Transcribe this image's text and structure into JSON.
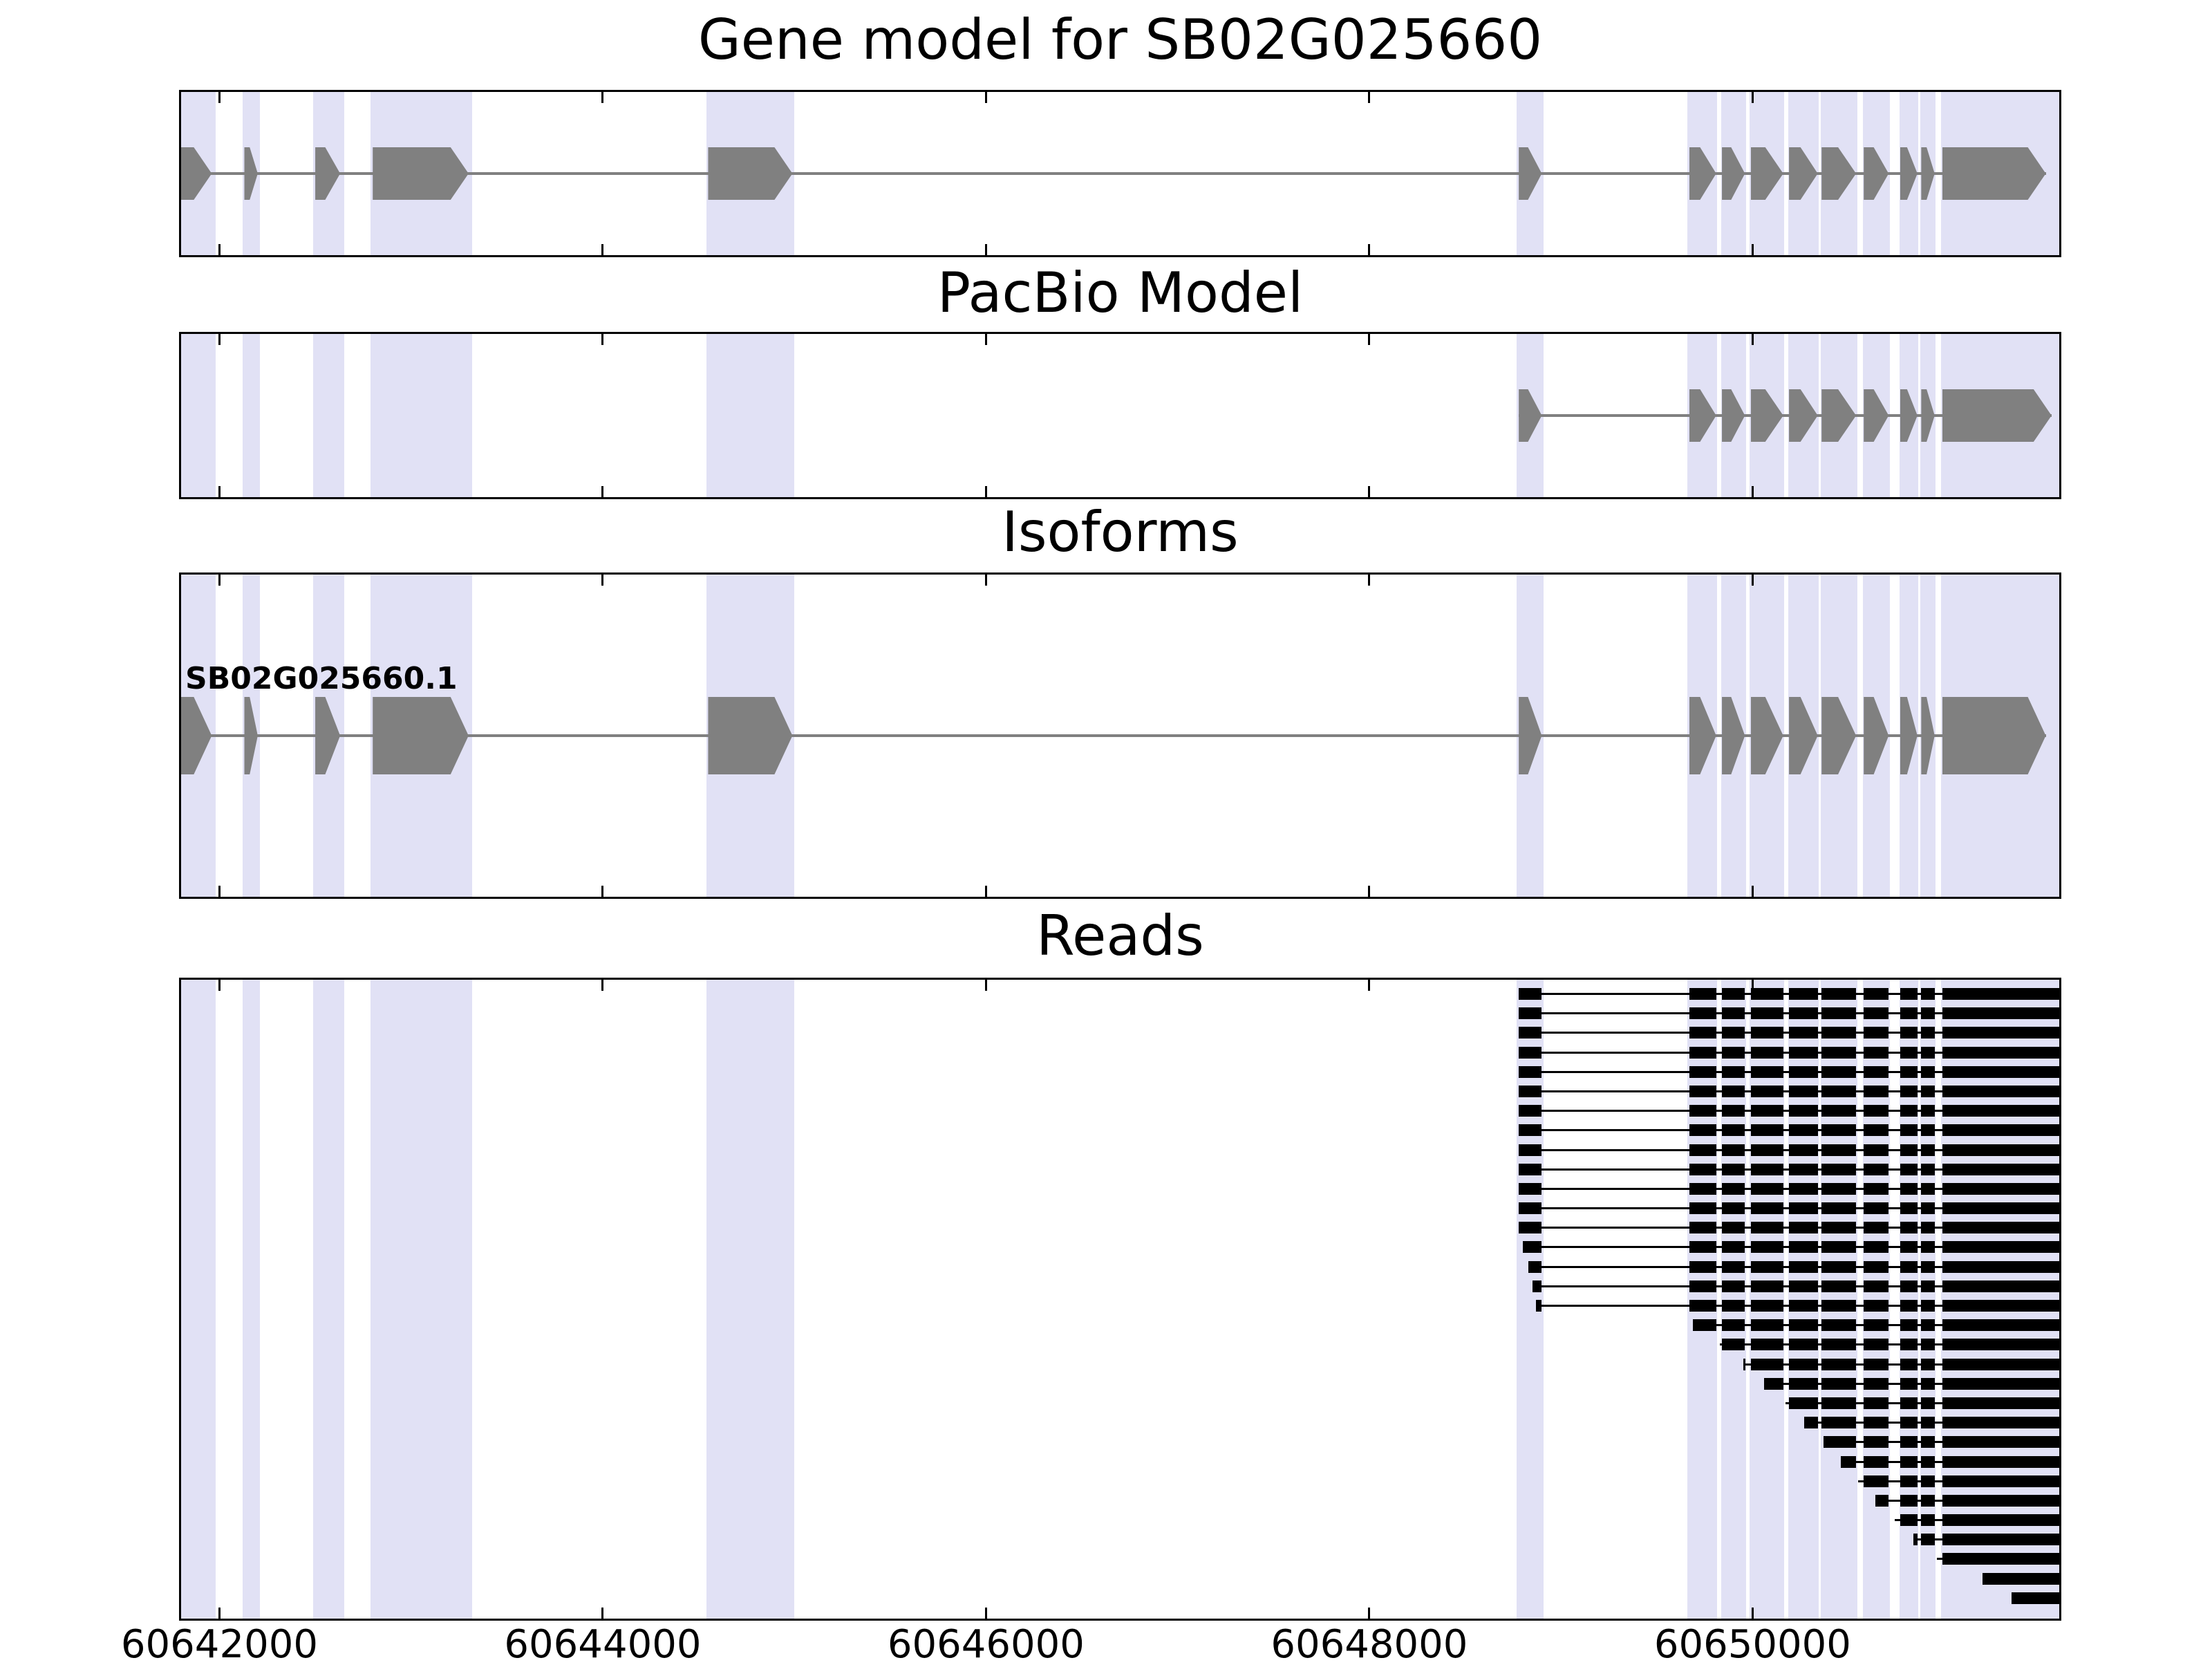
{
  "titles": {
    "gene_model": "Gene model for SB02G025660",
    "pacbio": "PacBio Model",
    "isoforms": "Isoforms",
    "reads": "Reads"
  },
  "axis": {
    "tick_labels": [
      "60642000",
      "60644000",
      "60646000",
      "60648000",
      "60650000"
    ]
  },
  "chart_data": {
    "type": "genome-tracks",
    "title": "Gene model for SB02G025660",
    "x_range": [
      60641800,
      60651600
    ],
    "x_ticks": [
      60642000,
      60644000,
      60646000,
      60648000,
      60650000
    ],
    "strand": "+",
    "grid": false,
    "highlight_regions": [
      [
        60641780,
        60641980
      ],
      [
        60642120,
        60642210
      ],
      [
        60642490,
        60642650
      ],
      [
        60642790,
        60643320
      ],
      [
        60644540,
        60645000
      ],
      [
        60648770,
        60648910
      ],
      [
        60649660,
        60649815
      ],
      [
        60649835,
        60649965
      ],
      [
        60649985,
        60650165
      ],
      [
        60650185,
        60650345
      ],
      [
        60650355,
        60650545
      ],
      [
        60650575,
        60650715
      ],
      [
        60650765,
        60650865
      ],
      [
        60650875,
        60650955
      ],
      [
        60650985,
        60651600
      ]
    ],
    "tracks": [
      {
        "name": "Gene model for SB02G025660",
        "track_type": "gene_model",
        "exons": [
          [
            60641800,
            60641960
          ],
          [
            60642130,
            60642200
          ],
          [
            60642500,
            60642630
          ],
          [
            60642800,
            60643300
          ],
          [
            60644550,
            60644990
          ],
          [
            60648780,
            60648900
          ],
          [
            60649670,
            60649810
          ],
          [
            60649840,
            60649960
          ],
          [
            60649990,
            60650160
          ],
          [
            60650190,
            60650340
          ],
          [
            60650360,
            60650540
          ],
          [
            60650580,
            60650710
          ],
          [
            60650770,
            60650860
          ],
          [
            60650880,
            60650950
          ],
          [
            60650990,
            60651530
          ]
        ]
      },
      {
        "name": "PacBio Model",
        "track_type": "gene_model",
        "exons": [
          [
            60648780,
            60648900
          ],
          [
            60649670,
            60649810
          ],
          [
            60649840,
            60649960
          ],
          [
            60649990,
            60650160
          ],
          [
            60650190,
            60650340
          ],
          [
            60650360,
            60650540
          ],
          [
            60650580,
            60650710
          ],
          [
            60650770,
            60650860
          ],
          [
            60650880,
            60650950
          ],
          [
            60650990,
            60651560
          ]
        ]
      },
      {
        "name": "Isoforms",
        "track_type": "isoforms",
        "isoforms": [
          {
            "id": "SB02G025660.1",
            "exons": [
              [
                60641800,
                60641960
              ],
              [
                60642130,
                60642200
              ],
              [
                60642500,
                60642630
              ],
              [
                60642800,
                60643300
              ],
              [
                60644550,
                60644990
              ],
              [
                60648780,
                60648900
              ],
              [
                60649670,
                60649810
              ],
              [
                60649840,
                60649960
              ],
              [
                60649990,
                60650160
              ],
              [
                60650190,
                60650340
              ],
              [
                60650360,
                60650540
              ],
              [
                60650580,
                60650710
              ],
              [
                60650770,
                60650860
              ],
              [
                60650880,
                60650950
              ],
              [
                60650990,
                60651530
              ]
            ]
          }
        ]
      },
      {
        "name": "Reads",
        "track_type": "reads",
        "read_exon_structure": [
          [
            60648780,
            60648900
          ],
          [
            60649670,
            60649810
          ],
          [
            60649840,
            60649960
          ],
          [
            60649990,
            60650160
          ],
          [
            60650190,
            60650340
          ],
          [
            60650360,
            60650540
          ],
          [
            60650580,
            60650710
          ],
          [
            60650770,
            60650860
          ],
          [
            60650880,
            60650950
          ],
          [
            60650990,
            60651600
          ]
        ],
        "reads": [
          [
            60648780,
            60651600
          ],
          [
            60648780,
            60651600
          ],
          [
            60648780,
            60651600
          ],
          [
            60648780,
            60651600
          ],
          [
            60648780,
            60651600
          ],
          [
            60648780,
            60651600
          ],
          [
            60648780,
            60651600
          ],
          [
            60648780,
            60651600
          ],
          [
            60648780,
            60651600
          ],
          [
            60648780,
            60651600
          ],
          [
            60648780,
            60651600
          ],
          [
            60648780,
            60651600
          ],
          [
            60648780,
            60651600
          ],
          [
            60648800,
            60651600
          ],
          [
            60648830,
            60651600
          ],
          [
            60648850,
            60651600
          ],
          [
            60648870,
            60651600
          ],
          [
            60649690,
            60651600
          ],
          [
            60649830,
            60651600
          ],
          [
            60649950,
            60651600
          ],
          [
            60650060,
            60651600
          ],
          [
            60650170,
            60651600
          ],
          [
            60650270,
            60651600
          ],
          [
            60650370,
            60651600
          ],
          [
            60650460,
            60651600
          ],
          [
            60650550,
            60651600
          ],
          [
            60650640,
            60651600
          ],
          [
            60650740,
            60651600
          ],
          [
            60650840,
            60651600
          ],
          [
            60650960,
            60651600
          ],
          [
            60651200,
            60651600
          ],
          [
            60651350,
            60651600
          ]
        ]
      }
    ],
    "colors": {
      "exon_fill": "#808080",
      "intron_line": "#808080",
      "read_fill": "#000000",
      "highlight": "#e1e1f5",
      "background": "#ffffff",
      "border": "#000000"
    }
  }
}
